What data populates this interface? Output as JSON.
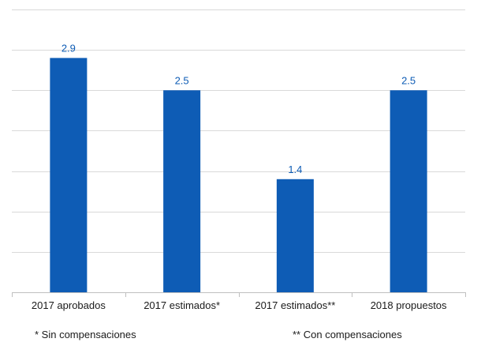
{
  "chart_data": {
    "type": "bar",
    "categories": [
      "2017 aprobados",
      "2017 estimados*",
      "2017 estimados**",
      "2018 propuestos"
    ],
    "values": [
      2.9,
      2.5,
      1.4,
      2.5
    ],
    "data_labels": [
      "2.9",
      "2.5",
      "1.4",
      "2.5"
    ],
    "title": "",
    "xlabel": "",
    "ylabel": "",
    "ylim": [
      0,
      3.5
    ],
    "gridlines": [
      0.5,
      1.0,
      1.5,
      2.0,
      2.5,
      3.0,
      3.5
    ],
    "grid": true,
    "bar_color": "#0e5cb5",
    "label_color": "#0e5cb5",
    "grid_color": "#d9d9d9"
  },
  "footnotes": {
    "left": "* Sin compensaciones",
    "right": "** Con compensaciones"
  }
}
